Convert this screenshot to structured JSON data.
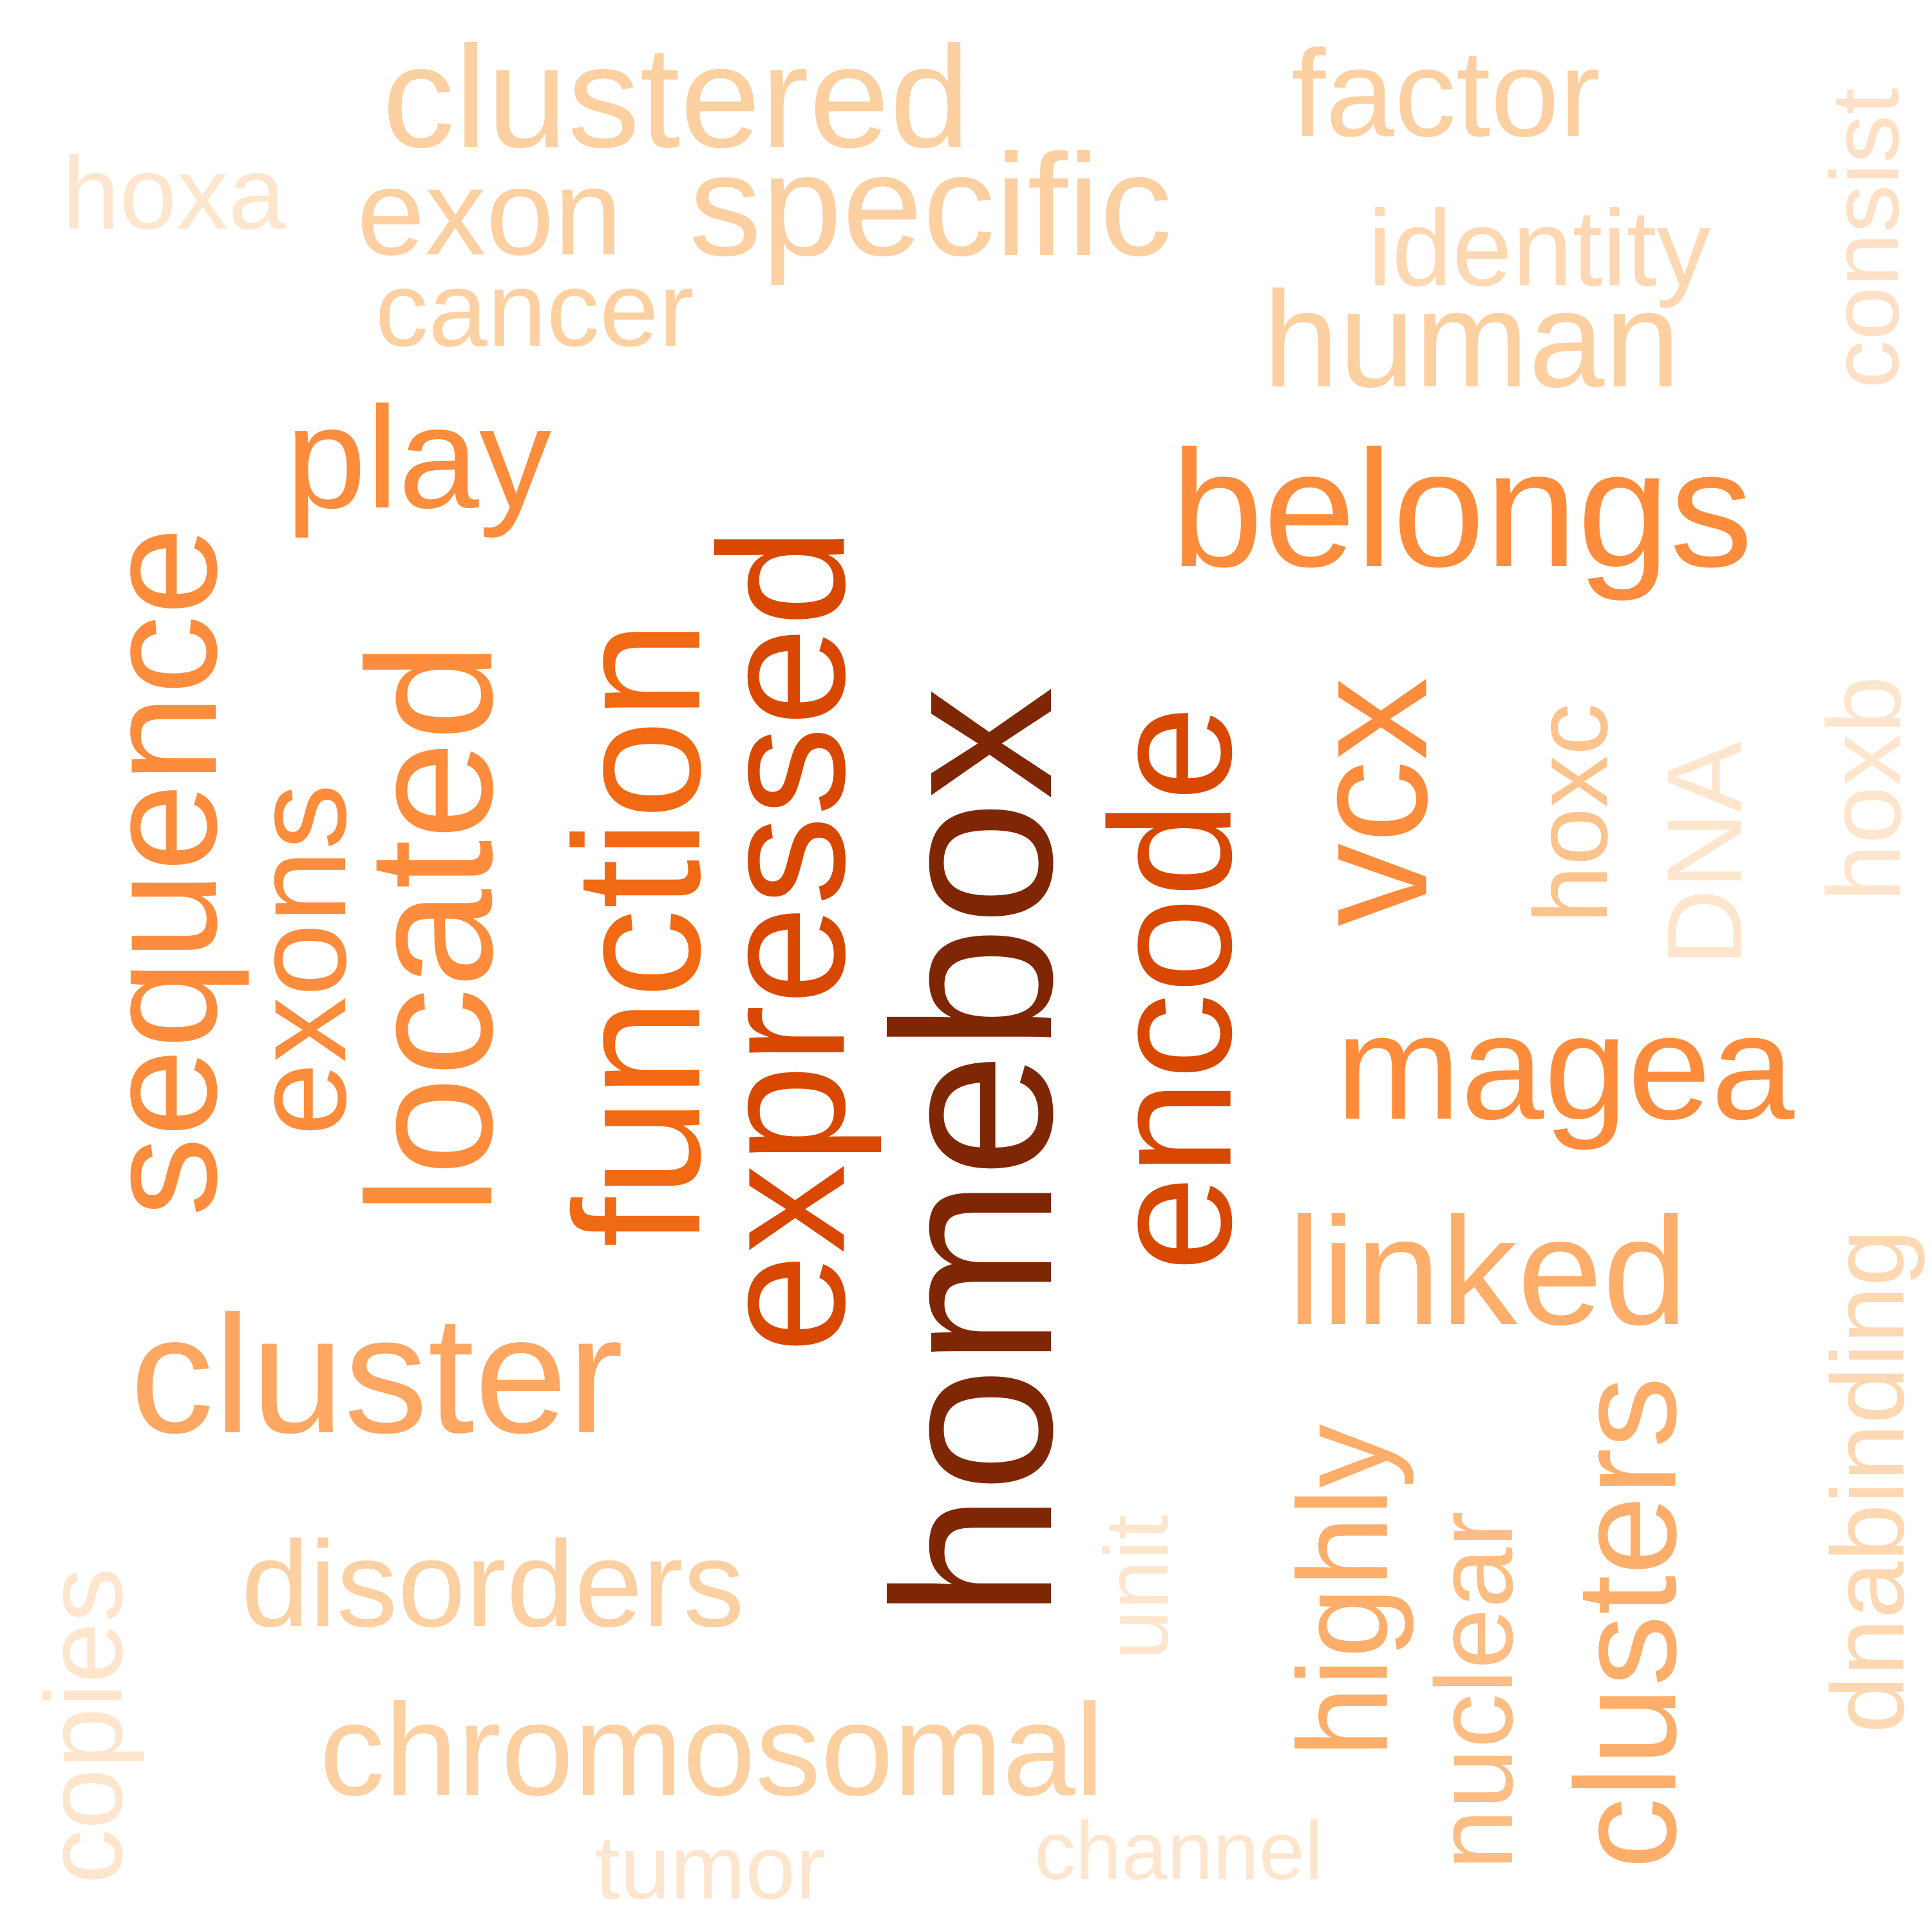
{
  "words": [
    {
      "text": "homebox",
      "color": "#7f2704"
    },
    {
      "text": "expressed",
      "color": "#d94801"
    },
    {
      "text": "encode",
      "color": "#d94801"
    },
    {
      "text": "function",
      "color": "#f16913"
    },
    {
      "text": "located",
      "color": "#fd8d3c"
    },
    {
      "text": "sequence",
      "color": "#fd8d3c"
    },
    {
      "text": "exons",
      "color": "#fd8d3c"
    },
    {
      "text": "belongs",
      "color": "#fd8d3c"
    },
    {
      "text": "play",
      "color": "#fd8d3c"
    },
    {
      "text": "vcx",
      "color": "#fd8d3c"
    },
    {
      "text": "magea",
      "color": "#fd8d3c"
    },
    {
      "text": "cluster",
      "color": "#fda762"
    },
    {
      "text": "linked",
      "color": "#fdae6b"
    },
    {
      "text": "highly",
      "color": "#fdae6b"
    },
    {
      "text": "clusters",
      "color": "#fdae6b"
    },
    {
      "text": "nuclear",
      "color": "#fdbd83"
    },
    {
      "text": "hoxc",
      "color": "#fdc38d"
    },
    {
      "text": "clustered",
      "color": "#fdd0a2"
    },
    {
      "text": "specific",
      "color": "#fdd0a2"
    },
    {
      "text": "exon",
      "color": "#fdd0a2"
    },
    {
      "text": "cancer",
      "color": "#fdd0a2"
    },
    {
      "text": "human",
      "color": "#fdd0a2"
    },
    {
      "text": "factor",
      "color": "#fdd0a2"
    },
    {
      "text": "identity",
      "color": "#fdd8b2"
    },
    {
      "text": "chromosomal",
      "color": "#fdd0a2"
    },
    {
      "text": "disorders",
      "color": "#fdd0a2"
    },
    {
      "text": "dnabinding",
      "color": "#fdd8b2"
    },
    {
      "text": "consist",
      "color": "#fde0c5"
    },
    {
      "text": "hoxa",
      "color": "#fee6ce"
    },
    {
      "text": "DNA",
      "color": "#fee6ce"
    },
    {
      "text": "hoxb",
      "color": "#fee6ce"
    },
    {
      "text": "unit",
      "color": "#fee6ce"
    },
    {
      "text": "copies",
      "color": "#fee6ce"
    },
    {
      "text": "tumor",
      "color": "#fee6ce"
    },
    {
      "text": "channel",
      "color": "#fee6ce"
    }
  ]
}
